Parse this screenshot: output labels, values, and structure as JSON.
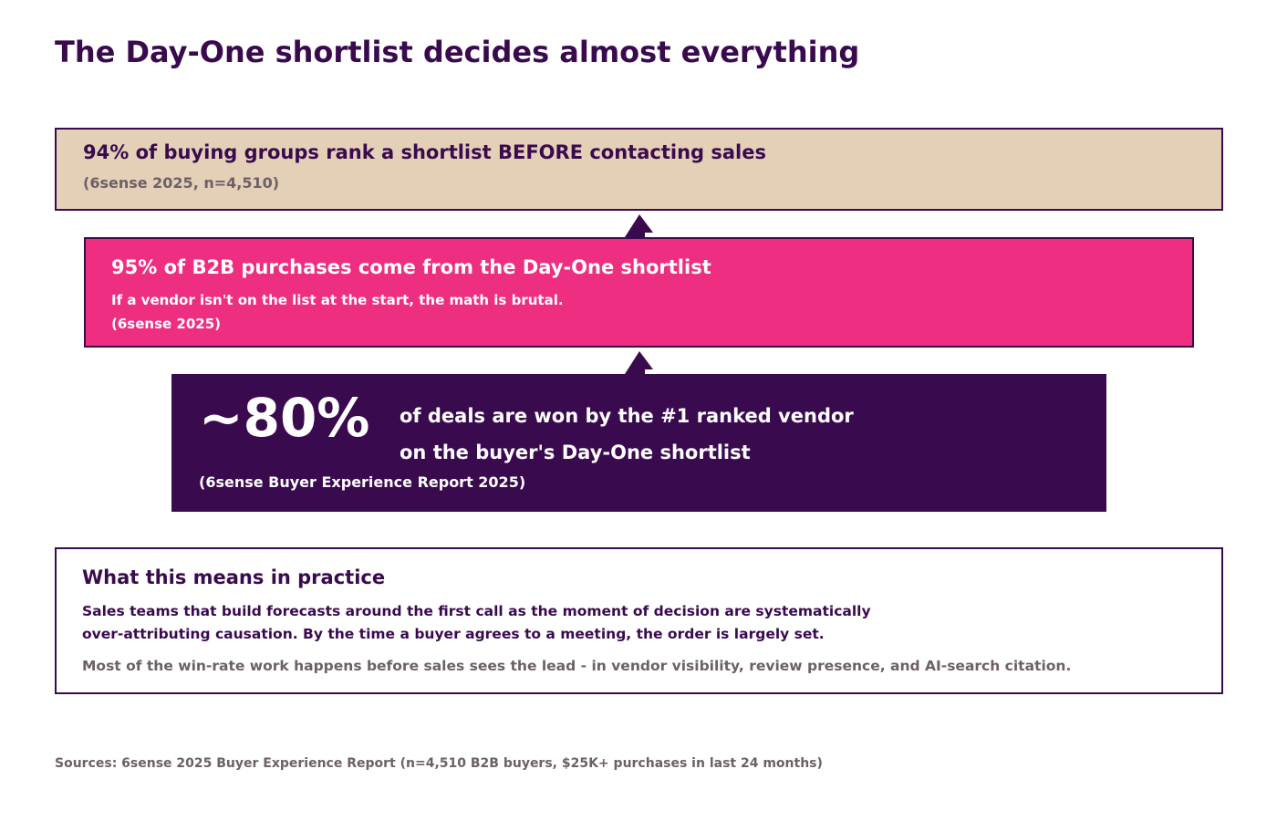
{
  "title": "The Day-One shortlist decides almost everything",
  "box1": {
    "headline": "94% of buying groups rank a shortlist BEFORE contacting sales",
    "source": "(6sense 2025, n=4,510)"
  },
  "box2": {
    "headline": "95% of B2B purchases come from the Day-One shortlist",
    "subtext": "If a vendor isn't on the list at the start, the math is brutal.",
    "source": "(6sense 2025)"
  },
  "box3": {
    "big_stat": "~80%",
    "line1": "of deals are won by the #1 ranked vendor",
    "line2": "on the buyer's Day-One shortlist",
    "source": "(6sense Buyer Experience Report 2025)"
  },
  "box4": {
    "heading": "What this means in practice",
    "para1_line1": "Sales teams that build forecasts around the first call as the moment of decision are systematically",
    "para1_line2": "over-attributing causation. By the time a buyer agrees to a meeting, the order is largely set.",
    "para2": "Most of the win-rate work happens before sales sees the lead - in vendor visibility, review presence, and AI-search citation."
  },
  "sources": "Sources: 6sense 2025 Buyer Experience Report (n=4,510 B2B buyers, $25K+ purchases in last 24 months)",
  "colors": {
    "dark_purple": "#3a0a4f",
    "magenta": "#ee2e80",
    "tan": "#e3d0b7",
    "gray_text": "#6d6068"
  }
}
